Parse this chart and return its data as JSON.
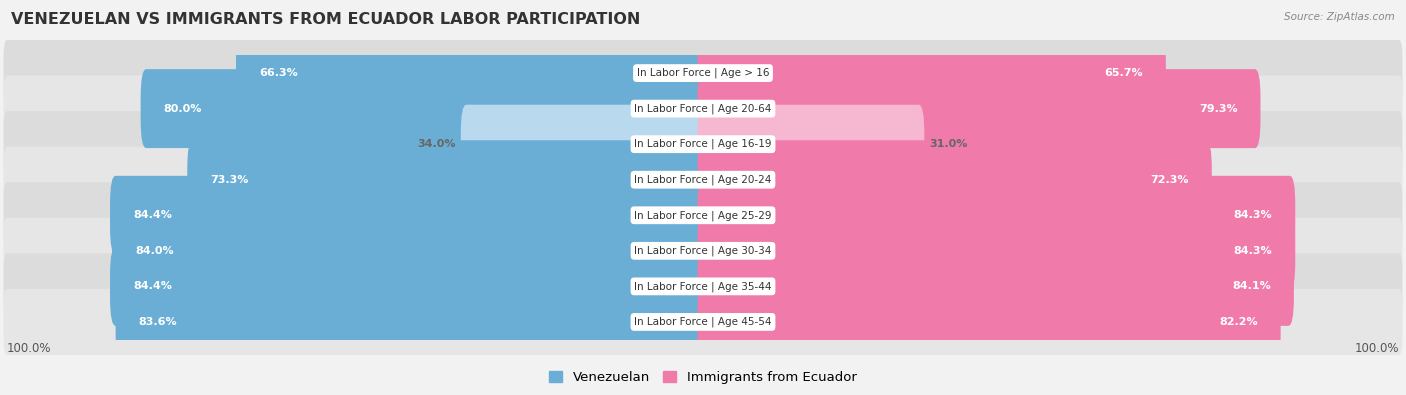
{
  "title": "VENEZUELAN VS IMMIGRANTS FROM ECUADOR LABOR PARTICIPATION",
  "source": "Source: ZipAtlas.com",
  "categories": [
    "In Labor Force | Age > 16",
    "In Labor Force | Age 20-64",
    "In Labor Force | Age 16-19",
    "In Labor Force | Age 20-24",
    "In Labor Force | Age 25-29",
    "In Labor Force | Age 30-34",
    "In Labor Force | Age 35-44",
    "In Labor Force | Age 45-54"
  ],
  "venezuelan": [
    66.3,
    80.0,
    34.0,
    73.3,
    84.4,
    84.0,
    84.4,
    83.6
  ],
  "ecuador": [
    65.7,
    79.3,
    31.0,
    72.3,
    84.3,
    84.3,
    84.1,
    82.2
  ],
  "venezuelan_color_strong": "#6aaed6",
  "venezuelan_color_light": "#b8d9ee",
  "ecuador_color_strong": "#f07aaa",
  "ecuador_color_light": "#f5b8d0",
  "background_color": "#f2f2f2",
  "row_bg_color_odd": "#e8e8e8",
  "row_bg_color_even": "#ebebeb",
  "label_bg_color": "#ffffff",
  "bar_height": 0.62,
  "max_value": 100.0,
  "title_fontsize": 11.5,
  "label_fontsize": 7.5,
  "value_fontsize": 8.0,
  "legend_fontsize": 9.5,
  "axis_label_fontsize": 8.5,
  "threshold_for_light": 50.0
}
